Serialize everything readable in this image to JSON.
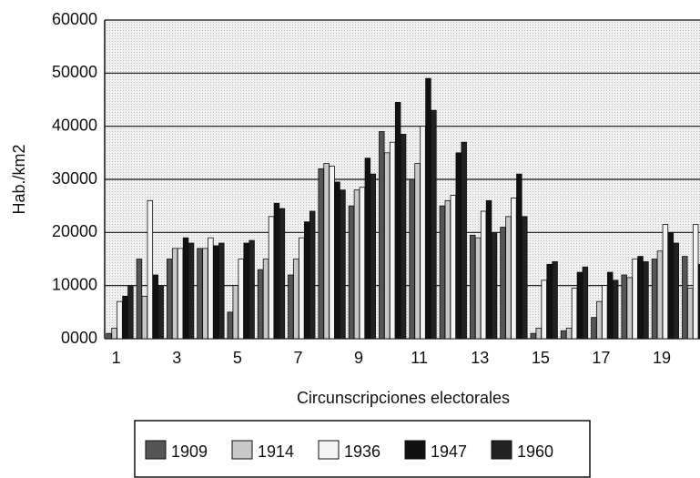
{
  "chart_data": {
    "type": "bar",
    "ylabel": "Hab./km2",
    "xlabel": "Circunscripciones electorales",
    "categories": [
      "1",
      null,
      "3",
      null,
      "5",
      null,
      "7",
      null,
      "9",
      null,
      "11",
      null,
      "13",
      null,
      "15",
      null,
      "17",
      null,
      "19",
      null
    ],
    "series": [
      {
        "name": "1909",
        "color": "#555555",
        "values": [
          1000,
          15000,
          15000,
          17000,
          5000,
          13000,
          12000,
          32000,
          25000,
          39000,
          30000,
          25000,
          19500,
          21000,
          1000,
          1500,
          4000,
          12000,
          15000,
          15500
        ]
      },
      {
        "name": "1914",
        "color": "#c8c8c8",
        "values": [
          2000,
          8000,
          17000,
          17000,
          10000,
          15000,
          15000,
          33000,
          28000,
          35000,
          33000,
          26000,
          19000,
          23000,
          2000,
          2000,
          7000,
          11500,
          16500,
          9500
        ]
      },
      {
        "name": "1936",
        "color": "#f4f4f4",
        "values": [
          7000,
          26000,
          17000,
          19000,
          15000,
          23000,
          19000,
          32500,
          28500,
          37000,
          40000,
          27000,
          24000,
          26500,
          11000,
          9500,
          10000,
          15000,
          21500,
          21500
        ]
      },
      {
        "name": "1947",
        "color": "#111111",
        "values": [
          8000,
          12000,
          19000,
          17500,
          18000,
          25500,
          22000,
          29500,
          34000,
          44500,
          49000,
          35000,
          26000,
          31000,
          14000,
          12500,
          12500,
          15500,
          20000,
          14000
        ]
      },
      {
        "name": "1960",
        "color": "#222222",
        "values": [
          10000,
          10000,
          18000,
          18000,
          18500,
          24500,
          24000,
          28000,
          31000,
          38500,
          43000,
          37000,
          20000,
          23000,
          14500,
          13500,
          11000,
          14500,
          18000,
          14000
        ]
      }
    ],
    "ylim": [
      0,
      60000
    ],
    "yticks": [
      {
        "value": 0,
        "label": "0000"
      },
      10000,
      20000,
      30000,
      40000,
      50000,
      60000
    ],
    "grid": true
  }
}
